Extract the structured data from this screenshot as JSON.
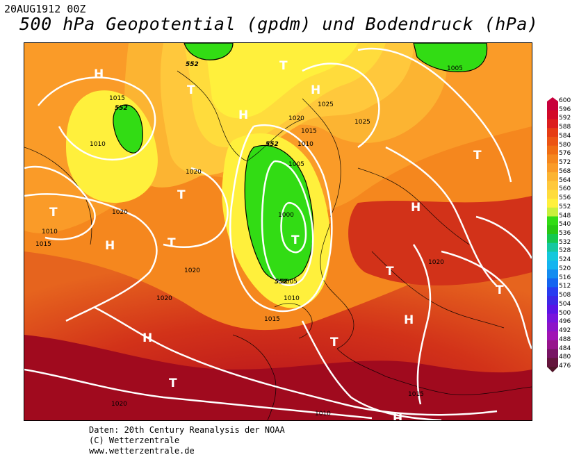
{
  "header": {
    "timestamp": "20AUG1912 00Z",
    "title": "500 hPa Geopotential (gpdm) und Bodendruck (hPa)"
  },
  "map": {
    "pressure_systems": [
      {
        "type": "H",
        "label": "H"
      },
      {
        "type": "T",
        "label": "T"
      },
      {
        "type": "H",
        "label": "H"
      },
      {
        "type": "T",
        "label": "T"
      },
      {
        "type": "H",
        "label": "H"
      },
      {
        "type": "T",
        "label": "T"
      },
      {
        "type": "T",
        "label": "T"
      },
      {
        "type": "T",
        "label": "T"
      },
      {
        "type": "H",
        "label": "H"
      },
      {
        "type": "T",
        "label": "T"
      },
      {
        "type": "T",
        "label": "T"
      },
      {
        "type": "H",
        "label": "H"
      },
      {
        "type": "T",
        "label": "T"
      },
      {
        "type": "T",
        "label": "T"
      },
      {
        "type": "H",
        "label": "H"
      },
      {
        "type": "H",
        "label": "H"
      },
      {
        "type": "T",
        "label": "T"
      },
      {
        "type": "T",
        "label": "T"
      },
      {
        "type": "H",
        "label": "H"
      }
    ],
    "isobar_labels": [
      "1015",
      "1010",
      "1020",
      "1010",
      "1015",
      "1020",
      "1020",
      "1025",
      "1025",
      "1020",
      "1015",
      "1010",
      "1005",
      "1000",
      "1005",
      "1010",
      "1015",
      "1020",
      "1020",
      "1015",
      "1020",
      "1010",
      "1005"
    ],
    "geopotential_labels": [
      "552",
      "552",
      "552",
      "552"
    ]
  },
  "legend": {
    "values": [
      "600",
      "596",
      "592",
      "588",
      "584",
      "580",
      "576",
      "572",
      "568",
      "564",
      "560",
      "556",
      "552",
      "548",
      "540",
      "536",
      "532",
      "528",
      "524",
      "520",
      "516",
      "512",
      "508",
      "504",
      "500",
      "496",
      "492",
      "488",
      "484",
      "480",
      "476"
    ],
    "colors": [
      "#c8003c",
      "#d20a28",
      "#dc1e1e",
      "#e63c14",
      "#ec5514",
      "#f06e14",
      "#f5871e",
      "#fa9b28",
      "#fcb432",
      "#ffc83c",
      "#ffdc3c",
      "#fff03c",
      "#c8f03c",
      "#32dc14",
      "#28c814",
      "#14c850",
      "#14c8a0",
      "#14c8dc",
      "#14b4f0",
      "#148cf0",
      "#1464f0",
      "#283cf0",
      "#3c28e6",
      "#5a14e6",
      "#7814dc",
      "#8c14c8",
      "#a014b4",
      "#96148c",
      "#781464",
      "#64143c",
      "#501428"
    ]
  },
  "footer": {
    "line1": "Daten: 20th Century Reanalysis der NOAA",
    "line2": "(C) Wetterzentrale",
    "line3": "www.wetterzentrale.de"
  }
}
